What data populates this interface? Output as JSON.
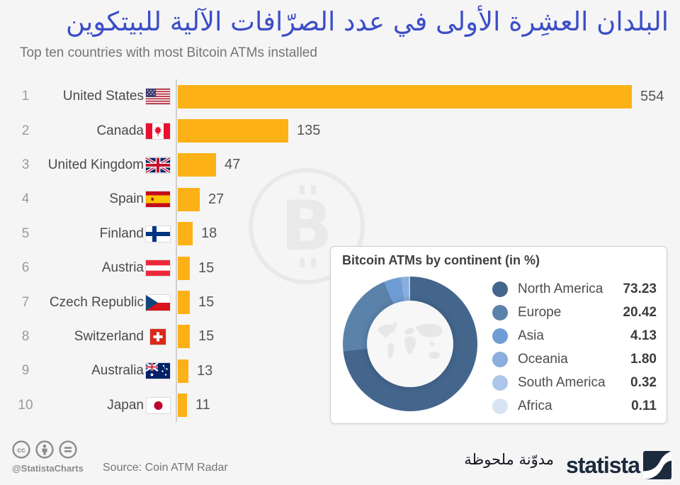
{
  "header": {
    "title_ar": "البلدان العشِرة الأولى في عدد الصرّافات الآلية للبيتكوين",
    "subtitle": "Top ten countries with most Bitcoin ATMs installed"
  },
  "chart_data": [
    {
      "type": "bar",
      "orientation": "horizontal",
      "title": "Top ten countries with most Bitcoin ATMs installed",
      "bar_color": "#fcb116",
      "xlim": [
        0,
        554
      ],
      "rows": [
        {
          "rank": "1",
          "country": "United States",
          "flag": "united-states",
          "value": 554
        },
        {
          "rank": "2",
          "country": "Canada",
          "flag": "canada",
          "value": 135
        },
        {
          "rank": "3",
          "country": "United Kingdom",
          "flag": "united-kingdom",
          "value": 47
        },
        {
          "rank": "4",
          "country": "Spain",
          "flag": "spain",
          "value": 27
        },
        {
          "rank": "5",
          "country": "Finland",
          "flag": "finland",
          "value": 18
        },
        {
          "rank": "6",
          "country": "Austria",
          "flag": "austria",
          "value": 15
        },
        {
          "rank": "7",
          "country": "Czech Republic",
          "flag": "czech-republic",
          "value": 15
        },
        {
          "rank": "8",
          "country": "Switzerland",
          "flag": "switzerland",
          "value": 15
        },
        {
          "rank": "9",
          "country": "Australia",
          "flag": "australia",
          "value": 13
        },
        {
          "rank": "10",
          "country": "Japan",
          "flag": "japan",
          "value": 11
        }
      ]
    },
    {
      "type": "pie",
      "title": "Bitcoin ATMs by continent (in %)",
      "legend_position": "right",
      "series": [
        {
          "name": "North America",
          "value": 73.23,
          "label": "73.23",
          "color": "#44668d"
        },
        {
          "name": "Europe",
          "value": 20.42,
          "label": "20.42",
          "color": "#5b82aa"
        },
        {
          "name": "Asia",
          "value": 4.13,
          "label": "4.13",
          "color": "#6f9cd4"
        },
        {
          "name": "Oceania",
          "value": 1.8,
          "label": "1.80",
          "color": "#8aaedd"
        },
        {
          "name": "South America",
          "value": 0.32,
          "label": "0.32",
          "color": "#abc6e9"
        },
        {
          "name": "Africa",
          "value": 0.11,
          "label": "0.11",
          "color": "#d7e4f4"
        }
      ]
    }
  ],
  "footer": {
    "license_icons": [
      "cc",
      "attribution",
      "equal"
    ],
    "handle": "@StatistaCharts",
    "source": "Source: Coin ATM Radar",
    "note_ar": "مدوّنة ملحوظة",
    "brand": "statista"
  }
}
